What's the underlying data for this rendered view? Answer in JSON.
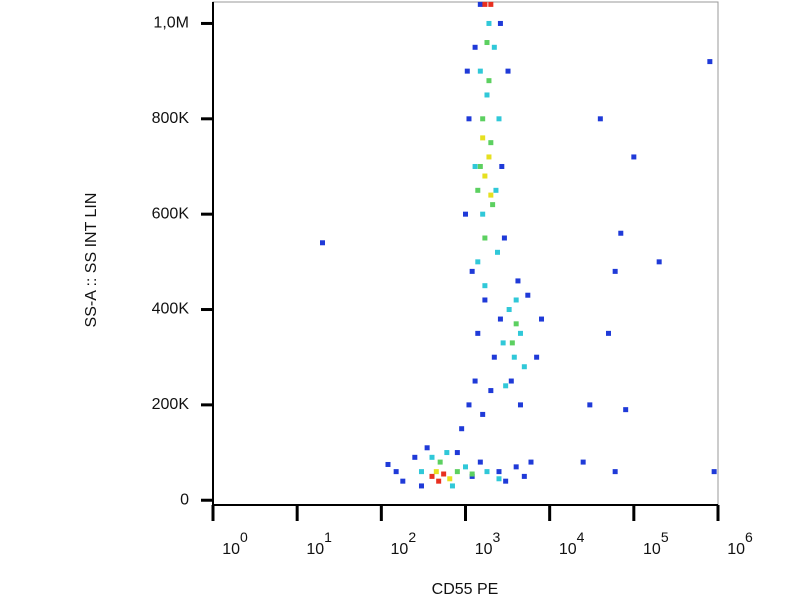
{
  "chart_data": {
    "type": "scatter",
    "x_label": "CD55 PE",
    "y_label": "SS-A :: SS INT LIN",
    "xscale": "log",
    "xlim": [
      1,
      1000000
    ],
    "xticks": [
      {
        "value": 1,
        "label": "10",
        "sup": "0"
      },
      {
        "value": 10,
        "label": "10",
        "sup": "1"
      },
      {
        "value": 100,
        "label": "10",
        "sup": "2"
      },
      {
        "value": 1000,
        "label": "10",
        "sup": "3"
      },
      {
        "value": 10000,
        "label": "10",
        "sup": "4"
      },
      {
        "value": 100000,
        "label": "10",
        "sup": "5"
      },
      {
        "value": 1000000,
        "label": "10",
        "sup": "6"
      }
    ],
    "ylim": [
      -10000,
      1045000
    ],
    "yticks": [
      0,
      {
        "value": 200000,
        "label": "200K"
      },
      {
        "value": 400000,
        "label": "400K"
      },
      {
        "value": 600000,
        "label": "600K"
      },
      {
        "value": 800000,
        "label": "800K"
      },
      {
        "value": 1000000,
        "label": "1,0M"
      }
    ],
    "series": [
      {
        "color": "#1f3ad8",
        "x": [
          150,
          180,
          250,
          300,
          350,
          800,
          1200,
          1500,
          2500,
          3000,
          4000,
          5000,
          6000,
          900,
          1100,
          1300,
          1600,
          2000,
          2200,
          1400,
          1700,
          2600,
          3500,
          4500,
          7000,
          8000,
          5500,
          4200,
          1200,
          1000,
          1100,
          2700,
          2900,
          1300,
          2600,
          1500,
          3200,
          1050,
          20,
          60000,
          40000,
          100000,
          70000,
          200000,
          50000,
          30000,
          80000,
          800000,
          900000,
          25000,
          60000,
          120
        ],
        "values": [
          60000,
          40000,
          90000,
          30000,
          110000,
          100000,
          50000,
          80000,
          60000,
          40000,
          70000,
          50000,
          80000,
          150000,
          200000,
          250000,
          180000,
          230000,
          300000,
          350000,
          420000,
          380000,
          250000,
          200000,
          300000,
          380000,
          430000,
          460000,
          480000,
          600000,
          800000,
          700000,
          550000,
          950000,
          1000000,
          1040000,
          900000,
          900000,
          540000,
          480000,
          800000,
          720000,
          560000,
          500000,
          350000,
          200000,
          190000,
          920000,
          60000,
          80000,
          60000,
          75000
        ]
      },
      {
        "color": "#30c8d8",
        "x": [
          400,
          600,
          700,
          1000,
          1800,
          2500,
          300,
          1400,
          1600,
          2300,
          1500,
          2200,
          1900,
          1700,
          2400,
          3800,
          4500,
          3300,
          5000,
          2800,
          4000,
          3000,
          1300,
          2500,
          1800
        ],
        "values": [
          90000,
          100000,
          30000,
          70000,
          60000,
          45000,
          60000,
          500000,
          600000,
          650000,
          900000,
          950000,
          1000000,
          450000,
          520000,
          300000,
          350000,
          400000,
          280000,
          330000,
          420000,
          240000,
          700000,
          800000,
          850000
        ]
      },
      {
        "color": "#5cd060",
        "x": [
          500,
          800,
          1200,
          1500,
          2000,
          1700,
          2100,
          1600,
          1900,
          1400,
          3600,
          4000,
          1800
        ],
        "values": [
          80000,
          60000,
          55000,
          700000,
          750000,
          550000,
          620000,
          800000,
          880000,
          650000,
          330000,
          370000,
          960000
        ]
      },
      {
        "color": "#e6e020",
        "x": [
          450,
          650,
          1700,
          1900,
          1600,
          2000
        ],
        "values": [
          60000,
          45000,
          680000,
          720000,
          760000,
          640000
        ]
      },
      {
        "color": "#e83020",
        "x": [
          400,
          550,
          480,
          1700,
          2000
        ],
        "values": [
          50000,
          55000,
          40000,
          1040000,
          1040000
        ]
      }
    ]
  }
}
